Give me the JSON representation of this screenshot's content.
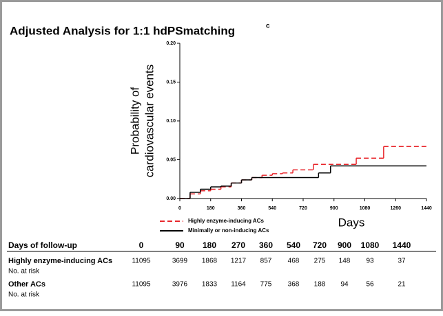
{
  "chart_data": {
    "type": "step",
    "title": "Adjusted Analysis for 1:1 hdPSmatching",
    "title_superscript": "c",
    "y_label": [
      "Probability of",
      "cardiovascular events"
    ],
    "x_label": "Days",
    "xlim": [
      0,
      1440
    ],
    "xticks": [
      0,
      180,
      360,
      540,
      720,
      900,
      1080,
      1260,
      1440
    ],
    "ylim": [
      0,
      0.2
    ],
    "yticks": [
      {
        "value": 0,
        "label": "0.00"
      },
      {
        "value": 0.05,
        "label": "0.05"
      },
      {
        "value": 0.1,
        "label": "0.10"
      },
      {
        "value": 0.15,
        "label": "0.15"
      },
      {
        "value": 0.2,
        "label": "0.20"
      }
    ],
    "series": [
      {
        "name": "Highly enzyme-inducing ACs",
        "color": "#e8262b",
        "dashed": true,
        "x": [
          0,
          60,
          120,
          180,
          240,
          300,
          360,
          420,
          480,
          540,
          600,
          660,
          780,
          1030,
          1190,
          1440
        ],
        "values": [
          0,
          0.006,
          0.01,
          0.012,
          0.015,
          0.02,
          0.024,
          0.027,
          0.03,
          0.032,
          0.033,
          0.037,
          0.044,
          0.052,
          0.067,
          0.067
        ]
      },
      {
        "name": "Minimally or non-inducing ACs",
        "color": "#000000",
        "dashed": false,
        "x": [
          0,
          60,
          120,
          180,
          240,
          300,
          360,
          420,
          810,
          880,
          1440
        ],
        "values": [
          0,
          0.008,
          0.012,
          0.015,
          0.016,
          0.02,
          0.024,
          0.027,
          0.033,
          0.042,
          0.042
        ]
      }
    ]
  },
  "table": {
    "header": [
      "Days of follow-up",
      0,
      90,
      180,
      270,
      360,
      540,
      720,
      900,
      1080,
      1440
    ],
    "rows": [
      {
        "label": "Highly enzyme-inducing ACs",
        "sublabel": "No. at risk",
        "values": [
          11095,
          3699,
          1868,
          1217,
          857,
          468,
          275,
          148,
          93,
          37
        ]
      },
      {
        "label": "Other ACs",
        "sublabel": "No. at risk",
        "values": [
          11095,
          3976,
          1833,
          1164,
          775,
          368,
          188,
          94,
          56,
          21
        ]
      }
    ]
  }
}
